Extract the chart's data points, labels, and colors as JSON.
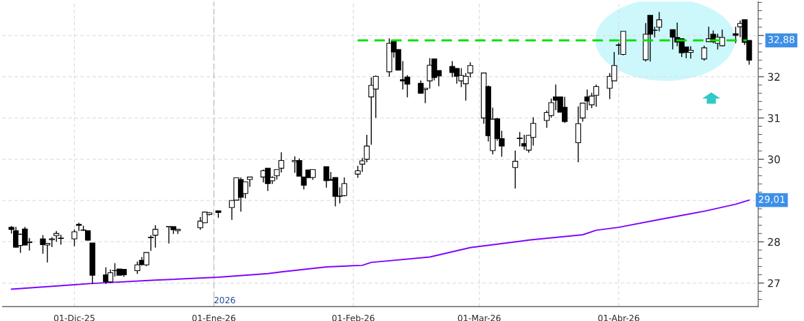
{
  "chart_data": {
    "type": "candlestick",
    "x": [
      "2025-11-17",
      "2025-11-18",
      "2025-11-19",
      "2025-11-20",
      "2025-11-21",
      "2025-11-24",
      "2025-11-25",
      "2025-11-26",
      "2025-11-27",
      "2025-11-28",
      "2025-12-01",
      "2025-12-02",
      "2025-12-03",
      "2025-12-04",
      "2025-12-05",
      "2025-12-08",
      "2025-12-09",
      "2025-12-10",
      "2025-12-11",
      "2025-12-12",
      "2025-12-15",
      "2025-12-16",
      "2025-12-17",
      "2025-12-18",
      "2025-12-19",
      "2025-12-22",
      "2025-12-23",
      "2025-12-24",
      "2025-12-29",
      "2025-12-30",
      "2025-12-31",
      "2026-01-02",
      "2026-01-05",
      "2026-01-06",
      "2026-01-07",
      "2026-01-08",
      "2026-01-09",
      "2026-01-12",
      "2026-01-13",
      "2026-01-14",
      "2026-01-15",
      "2026-01-16",
      "2026-01-19",
      "2026-01-20",
      "2026-01-21",
      "2026-01-22",
      "2026-01-23",
      "2026-01-26",
      "2026-01-27",
      "2026-01-28",
      "2026-01-29",
      "2026-01-30",
      "2026-02-02",
      "2026-02-03",
      "2026-02-04",
      "2026-02-05",
      "2026-02-06",
      "2026-02-09",
      "2026-02-10",
      "2026-02-11",
      "2026-02-12",
      "2026-02-13",
      "2026-02-16",
      "2026-02-17",
      "2026-02-18",
      "2026-02-19",
      "2026-02-20",
      "2026-02-23",
      "2026-02-24",
      "2026-02-25",
      "2026-02-26",
      "2026-02-27",
      "2026-03-02",
      "2026-03-03",
      "2026-03-04",
      "2026-03-05",
      "2026-03-06",
      "2026-03-09",
      "2026-03-10",
      "2026-03-11",
      "2026-03-12",
      "2026-03-13",
      "2026-03-16",
      "2026-03-17",
      "2026-03-18",
      "2026-03-19",
      "2026-03-20",
      "2026-03-23",
      "2026-03-24",
      "2026-03-25",
      "2026-03-26",
      "2026-03-27",
      "2026-03-30",
      "2026-03-31",
      "2026-04-01",
      "2026-04-02",
      "2026-04-07",
      "2026-04-08",
      "2026-04-09",
      "2026-04-10",
      "2026-04-13",
      "2026-04-14",
      "2026-04-15",
      "2026-04-16",
      "2026-04-17",
      "2026-04-20",
      "2026-04-21",
      "2026-04-22",
      "2026-04-23",
      "2026-04-24",
      "2026-04-27",
      "2026-04-28",
      "2026-04-29",
      "2026-04-30"
    ],
    "ohlc": [
      [
        28.35,
        28.38,
        28.2,
        28.3
      ],
      [
        28.27,
        28.36,
        27.86,
        27.87
      ],
      [
        27.91,
        28.2,
        27.73,
        28.18
      ],
      [
        28.31,
        28.36,
        27.91,
        27.92
      ],
      [
        27.98,
        28.09,
        27.79,
        28.0
      ],
      [
        28.07,
        28.16,
        27.71,
        27.93
      ],
      [
        27.92,
        27.97,
        27.5,
        27.96
      ],
      [
        28.05,
        28.11,
        27.87,
        28.07
      ],
      [
        28.15,
        28.26,
        28.0,
        28.2
      ],
      [
        28.08,
        28.17,
        27.93,
        28.09
      ],
      [
        28.07,
        28.3,
        27.89,
        28.24
      ],
      [
        28.4,
        28.46,
        28.26,
        28.42
      ],
      [
        28.28,
        28.39,
        28.26,
        28.28
      ],
      [
        28.27,
        28.27,
        28.03,
        28.04
      ],
      [
        27.97,
        27.97,
        26.98,
        27.19
      ],
      [
        27.2,
        27.38,
        26.98,
        27.03
      ],
      [
        27.03,
        27.33,
        27.0,
        27.25
      ],
      [
        27.3,
        27.48,
        27.16,
        27.3
      ],
      [
        27.34,
        27.34,
        27.19,
        27.19
      ],
      [
        27.33,
        27.34,
        27.15,
        27.2
      ],
      [
        27.3,
        27.52,
        27.22,
        27.44
      ],
      [
        27.55,
        27.63,
        27.42,
        27.45
      ],
      [
        27.44,
        27.74,
        27.41,
        27.74
      ],
      [
        28.1,
        28.16,
        27.78,
        28.11
      ],
      [
        28.16,
        28.4,
        27.86,
        28.3
      ],
      [
        28.36,
        28.37,
        27.96,
        28.37
      ],
      [
        28.37,
        28.37,
        28.19,
        28.29
      ],
      [
        28.27,
        28.3,
        28.19,
        28.3
      ],
      [
        28.34,
        28.6,
        28.29,
        28.5
      ],
      [
        28.46,
        28.73,
        28.45,
        28.72
      ],
      [
        28.66,
        28.72,
        28.64,
        28.7
      ],
      [
        28.75,
        28.75,
        28.58,
        28.71
      ],
      [
        28.83,
        29.0,
        28.53,
        29.0
      ],
      [
        29.01,
        29.55,
        29.0,
        29.55
      ],
      [
        29.51,
        29.56,
        28.73,
        29.08
      ],
      [
        29.17,
        29.45,
        29.05,
        29.45
      ],
      [
        29.51,
        29.57,
        29.33,
        29.57
      ],
      [
        29.57,
        29.75,
        29.44,
        29.72
      ],
      [
        29.78,
        29.78,
        29.23,
        29.41
      ],
      [
        29.48,
        29.59,
        29.4,
        29.56
      ],
      [
        29.6,
        29.75,
        29.51,
        29.75
      ],
      [
        29.78,
        30.17,
        29.68,
        29.97
      ],
      [
        29.94,
        30.07,
        29.67,
        29.97
      ],
      [
        29.97,
        30.02,
        29.59,
        29.59
      ],
      [
        29.57,
        29.57,
        29.27,
        29.37
      ],
      [
        29.74,
        29.74,
        29.55,
        29.55
      ],
      [
        29.56,
        29.75,
        29.5,
        29.75
      ],
      [
        29.82,
        29.82,
        29.31,
        29.48
      ],
      [
        29.51,
        29.69,
        29.48,
        29.49
      ],
      [
        29.56,
        29.56,
        28.86,
        29.1
      ],
      [
        29.1,
        29.32,
        28.93,
        29.11
      ],
      [
        29.12,
        29.56,
        29.1,
        29.41
      ],
      [
        29.64,
        29.84,
        29.55,
        29.72
      ],
      [
        29.88,
        30.03,
        29.69,
        29.96
      ],
      [
        30.0,
        30.59,
        29.93,
        30.32
      ],
      [
        31.51,
        31.98,
        30.35,
        31.79
      ],
      [
        31.7,
        32.03,
        31.0,
        32.01
      ],
      [
        32.12,
        32.93,
        32.0,
        32.81
      ],
      [
        32.87,
        32.87,
        32.46,
        32.6
      ],
      [
        32.66,
        32.66,
        32.16,
        32.16
      ],
      [
        31.93,
        32.38,
        31.69,
        31.9
      ],
      [
        31.99,
        32.04,
        31.5,
        31.82
      ],
      [
        31.84,
        31.91,
        31.6,
        31.6
      ],
      [
        31.69,
        31.72,
        31.36,
        31.72
      ],
      [
        31.9,
        32.45,
        31.71,
        32.28
      ],
      [
        32.43,
        32.43,
        31.91,
        31.98
      ],
      [
        32.15,
        32.15,
        31.77,
        32.02
      ],
      [
        32.25,
        32.38,
        31.99,
        32.1
      ],
      [
        32.2,
        32.21,
        31.83,
        32.01
      ],
      [
        31.9,
        32.21,
        31.75,
        32.03
      ],
      [
        31.83,
        32.09,
        31.42,
        32.01
      ],
      [
        32.09,
        32.35,
        31.98,
        32.27
      ],
      [
        31.0,
        32.1,
        30.86,
        32.09
      ],
      [
        31.76,
        31.79,
        30.43,
        30.57
      ],
      [
        30.21,
        31.25,
        30.12,
        30.97
      ],
      [
        30.98,
        31.0,
        30.45,
        30.5
      ],
      [
        30.5,
        30.69,
        30.06,
        30.32
      ],
      [
        29.8,
        30.21,
        29.29,
        29.95
      ],
      [
        30.51,
        30.66,
        30.31,
        30.5
      ],
      [
        30.38,
        30.59,
        30.23,
        30.32
      ],
      [
        30.22,
        30.59,
        30.16,
        30.58
      ],
      [
        30.53,
        31.02,
        30.33,
        30.87
      ],
      [
        30.94,
        31.18,
        30.76,
        31.13
      ],
      [
        31.06,
        31.47,
        31.01,
        31.37
      ],
      [
        31.51,
        31.81,
        31.19,
        31.43
      ],
      [
        31.51,
        31.51,
        31.14,
        31.14
      ],
      [
        31.26,
        31.51,
        30.88,
        30.91
      ],
      [
        30.4,
        31.28,
        29.93,
        30.86
      ],
      [
        31.0,
        31.37,
        30.91,
        31.36
      ],
      [
        31.51,
        31.69,
        31.19,
        31.41
      ],
      [
        31.32,
        31.61,
        31.24,
        31.53
      ],
      [
        31.55,
        31.81,
        31.27,
        31.76
      ],
      [
        31.72,
        32.09,
        31.46,
        32.01
      ],
      [
        31.9,
        32.6,
        31.9,
        32.27
      ],
      [
        32.77,
        32.82,
        32.53,
        32.76
      ],
      [
        32.54,
        33.1,
        32.52,
        33.1
      ],
      [
        32.41,
        33.3,
        32.37,
        33.03
      ],
      [
        33.49,
        33.49,
        32.37,
        33.03
      ],
      [
        33.12,
        33.21,
        32.95,
        33.13
      ],
      [
        33.2,
        33.57,
        33.1,
        33.38
      ],
      [
        33.14,
        33.14,
        32.66,
        32.96
      ],
      [
        32.95,
        33.31,
        32.74,
        32.84
      ],
      [
        32.92,
        32.92,
        32.48,
        32.58
      ],
      [
        32.72,
        32.72,
        32.45,
        32.59
      ],
      [
        32.59,
        32.74,
        32.44,
        32.64
      ],
      [
        32.43,
        32.75,
        32.39,
        32.7
      ],
      [
        32.85,
        33.21,
        32.85,
        32.92
      ],
      [
        33.03,
        33.12,
        32.81,
        32.85
      ],
      [
        32.81,
        33.04,
        32.66,
        32.96
      ],
      [
        32.75,
        33.14,
        32.74,
        32.95
      ],
      [
        33.04,
        33.21,
        32.81,
        33.0
      ],
      [
        33.21,
        33.36,
        32.96,
        33.29
      ],
      [
        33.38,
        33.38,
        32.77,
        32.83
      ],
      [
        32.88,
        32.88,
        32.29,
        32.4
      ]
    ],
    "series": [
      {
        "type": "line",
        "color": "#8000ff",
        "x": [
          "2025-11-17",
          "2025-12-01",
          "2025-12-05",
          "2025-12-19",
          "2026-01-02",
          "2026-01-13",
          "2026-01-16",
          "2026-01-26",
          "2026-02-03",
          "2026-02-05",
          "2026-02-18",
          "2026-02-27",
          "2026-03-12",
          "2026-03-24",
          "2026-03-27",
          "2026-04-01",
          "2026-04-10",
          "2026-04-20",
          "2026-04-27",
          "2026-04-30"
        ],
        "values": [
          26.85,
          26.96,
          26.99,
          27.07,
          27.14,
          27.23,
          27.27,
          27.39,
          27.43,
          27.5,
          27.63,
          27.86,
          28.04,
          28.17,
          28.28,
          28.35,
          28.54,
          28.74,
          28.91,
          29.01
        ]
      }
    ],
    "xlim": [
      "2025-11-15",
      "2026-05-02"
    ],
    "xticks": [
      {
        "value": "2025-12-01",
        "label": "01-Dic-25"
      },
      {
        "value": "2026-01-01",
        "label": "01-Ene-26"
      },
      {
        "value": "2026-02-01",
        "label": "01-Feb-26"
      },
      {
        "value": "2026-03-01",
        "label": "01-Mar-26"
      },
      {
        "value": "2026-04-01",
        "label": "01-Abr-26"
      }
    ],
    "ylim": [
      26.43,
      33.82
    ],
    "yticks": [
      27,
      28,
      {
        "value": 29,
        "label": null
      },
      30,
      31,
      32,
      {
        "value": 33,
        "label": null
      }
    ],
    "ref_lines": [
      {
        "axis": "y",
        "value": 32.88,
        "label": "32,88",
        "color": "#00e000",
        "line_style": "dashed"
      },
      {
        "axis": "x",
        "value": "2026-01-01",
        "label": "2026",
        "color": "#c8c8c8",
        "line_style": "dashed"
      }
    ],
    "annotations": [
      {
        "text": "29,01",
        "x": "2026-04-30",
        "y": 29.01
      }
    ],
    "grid": true,
    "legend": false
  }
}
